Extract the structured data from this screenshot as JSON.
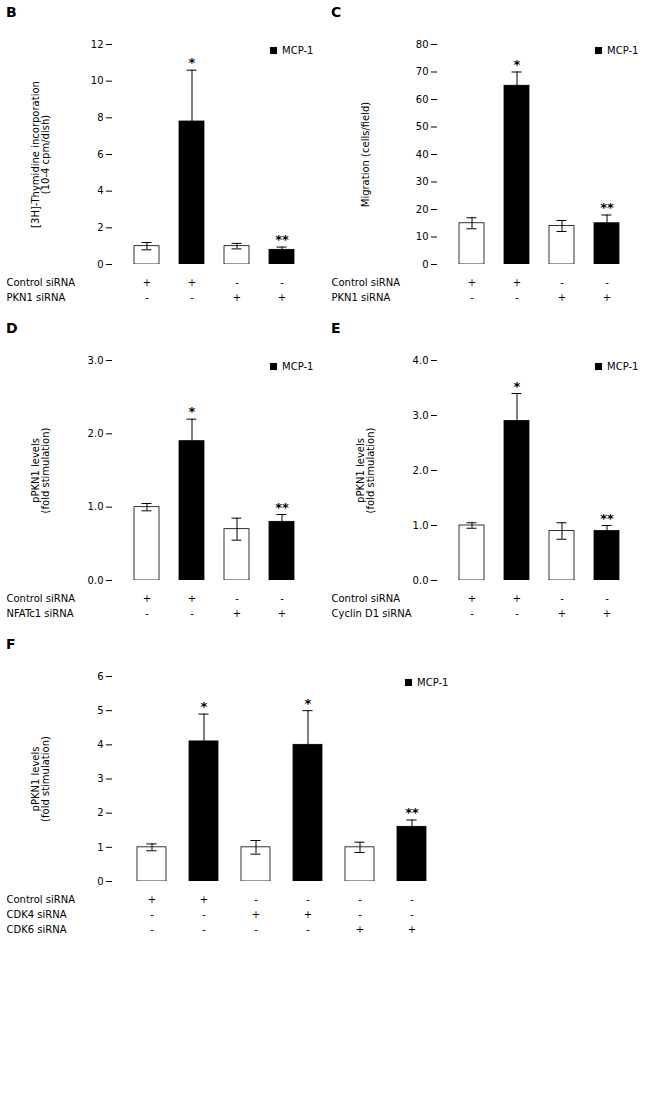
{
  "chart_data": [
    {
      "type": "bar",
      "title": "B",
      "ylabel": "[3H]-Thymidine incorporation\n(10-4 cpm/dish)",
      "categories": [
        null,
        null,
        null,
        null
      ],
      "values": [
        1.0,
        7.8,
        1.0,
        0.8
      ],
      "errors": [
        0.2,
        2.8,
        0.15,
        0.15
      ],
      "colors": [
        "white",
        "black",
        "white",
        "black"
      ],
      "stars": [
        null,
        "*",
        null,
        "**"
      ],
      "ylim": [
        0,
        12
      ],
      "yticks": [
        0,
        2,
        4,
        6,
        8,
        10,
        12
      ],
      "legend": "upper right",
      "legend_entries": [
        {
          "name": "MCP-1",
          "color": "black"
        }
      ],
      "rows": [
        {
          "name": "Control siRNA",
          "values": [
            "+",
            "+",
            "-",
            "-"
          ]
        },
        {
          "name": "PKN1 siRNA",
          "values": [
            "-",
            "-",
            "+",
            "+"
          ]
        }
      ]
    },
    {
      "type": "bar",
      "title": "C",
      "ylabel": "Migration (cells/field)",
      "categories": [
        null,
        null,
        null,
        null
      ],
      "values": [
        15.0,
        65.0,
        14.0,
        15.0
      ],
      "errors": [
        2.0,
        5.0,
        2.0,
        3.0
      ],
      "colors": [
        "white",
        "black",
        "white",
        "black"
      ],
      "stars": [
        null,
        "*",
        null,
        "**"
      ],
      "ylim": [
        0,
        80
      ],
      "yticks": [
        0,
        10,
        20,
        30,
        40,
        50,
        60,
        70,
        80
      ],
      "legend": "upper right",
      "legend_entries": [
        {
          "name": "MCP-1",
          "color": "black"
        }
      ],
      "rows": [
        {
          "name": "Control siRNA",
          "values": [
            "+",
            "+",
            "-",
            "-"
          ]
        },
        {
          "name": "PKN1 siRNA",
          "values": [
            "-",
            "-",
            "+",
            "+"
          ]
        }
      ]
    },
    {
      "type": "bar",
      "title": "D",
      "ylabel": "pPKN1 levels\n(fold stimulation)",
      "categories": [
        null,
        null,
        null,
        null
      ],
      "values": [
        1.0,
        1.9,
        0.7,
        0.8
      ],
      "errors": [
        0.05,
        0.3,
        0.15,
        0.1
      ],
      "colors": [
        "white",
        "black",
        "white",
        "black"
      ],
      "stars": [
        null,
        "*",
        null,
        "**"
      ],
      "ylim": [
        0,
        3.0
      ],
      "yticks": [
        {
          "value": 0,
          "label": "0.0"
        },
        {
          "value": 1,
          "label": "1.0"
        },
        {
          "value": 2,
          "label": "2.0"
        },
        {
          "value": 3,
          "label": "3.0"
        }
      ],
      "legend": "upper right",
      "legend_entries": [
        {
          "name": "MCP-1",
          "color": "black"
        }
      ],
      "rows": [
        {
          "name": "Control siRNA",
          "values": [
            "+",
            "+",
            "-",
            "-"
          ]
        },
        {
          "name": "NFATc1 siRNA",
          "values": [
            "-",
            "-",
            "+",
            "+"
          ]
        }
      ]
    },
    {
      "type": "bar",
      "title": "E",
      "ylabel": "pPKN1 levels\n(fold stimulation)",
      "categories": [
        null,
        null,
        null,
        null
      ],
      "values": [
        1.0,
        2.9,
        0.9,
        0.9
      ],
      "errors": [
        0.05,
        0.5,
        0.15,
        0.1
      ],
      "colors": [
        "white",
        "black",
        "white",
        "black"
      ],
      "stars": [
        null,
        "*",
        null,
        "**"
      ],
      "ylim": [
        0,
        4.0
      ],
      "yticks": [
        {
          "value": 0,
          "label": "0.0"
        },
        {
          "value": 1,
          "label": "1.0"
        },
        {
          "value": 2,
          "label": "2.0"
        },
        {
          "value": 3,
          "label": "3.0"
        },
        {
          "value": 4,
          "label": "4.0"
        }
      ],
      "legend": "upper right",
      "legend_entries": [
        {
          "name": "MCP-1",
          "color": "black"
        }
      ],
      "rows": [
        {
          "name": "Control siRNA",
          "values": [
            "+",
            "+",
            "-",
            "-"
          ]
        },
        {
          "name": "Cyclin D1 siRNA",
          "values": [
            "-",
            "-",
            "+",
            "+"
          ]
        }
      ]
    },
    {
      "type": "bar",
      "title": "F",
      "ylabel": "pPKN1 levels\n(fold stimulation)",
      "categories": [
        null,
        null,
        null,
        null,
        null,
        null
      ],
      "values": [
        1.0,
        4.1,
        1.0,
        4.0,
        1.0,
        1.6
      ],
      "errors": [
        0.1,
        0.8,
        0.2,
        1.0,
        0.15,
        0.2
      ],
      "colors": [
        "white",
        "black",
        "white",
        "black",
        "white",
        "black"
      ],
      "stars": [
        null,
        "*",
        null,
        "*",
        null,
        "**"
      ],
      "ylim": [
        0,
        6
      ],
      "yticks": [
        0,
        1,
        2,
        3,
        4,
        5,
        6
      ],
      "legend": "upper right",
      "legend_entries": [
        {
          "name": "MCP-1",
          "color": "black"
        }
      ],
      "rows": [
        {
          "name": "Control siRNA",
          "values": [
            "+",
            "+",
            "-",
            "-",
            "-",
            "-"
          ]
        },
        {
          "name": "CDK4 siRNA",
          "values": [
            "-",
            "-",
            "+",
            "+",
            "-",
            "-"
          ]
        },
        {
          "name": "CDK6 siRNA",
          "values": [
            "-",
            "-",
            "-",
            "-",
            "+",
            "+"
          ]
        }
      ]
    }
  ]
}
